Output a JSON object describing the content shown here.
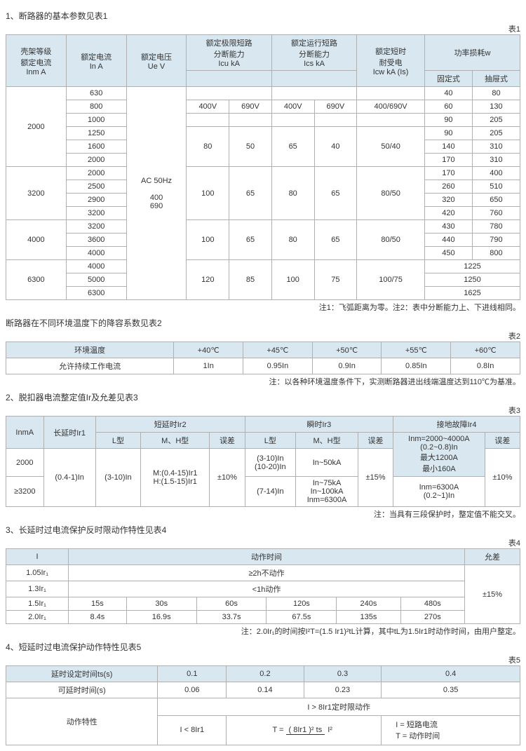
{
  "s1": {
    "title": "1、断路器的基本参数见表1",
    "lbl": "表1",
    "h": {
      "c0": "壳架等级\n额定电流\nInm A",
      "c1": "额定电流\nIn A",
      "c2": "额定电压\nUe V",
      "c3": "额定极限短路\n分断能力\nIcu kA",
      "c4": "额定运行短路\n分断能力\nIcs kA",
      "c5": "额定短时\n耐受电\nIcw kA (Is)",
      "c6": "功率损耗w",
      "c6a": "固定式",
      "c6b": "抽屉式"
    },
    "sub": {
      "a1": "400V",
      "a2": "690V",
      "b1": "400V",
      "b2": "690V",
      "c": "400/690V"
    },
    "uev": "AC 50Hz\n\n400\n690",
    "g": [
      {
        "f": "2000",
        "in": [
          "630",
          "800",
          "1000",
          "1250",
          "1600",
          "2000"
        ],
        "icu": [
          [
            "",
            ""
          ],
          [
            "400V",
            "690V"
          ],
          [
            "",
            ""
          ],
          [
            "",
            ""
          ],
          [
            "80",
            "50"
          ],
          [
            "",
            ""
          ]
        ],
        "ics": [
          [
            "",
            ""
          ],
          [
            "400V",
            "690V"
          ],
          [
            "",
            ""
          ],
          [
            "",
            ""
          ],
          [
            "65",
            "40"
          ],
          [
            "",
            ""
          ]
        ],
        "icw": [
          "",
          "400/690V",
          "",
          "",
          "50/40",
          ""
        ],
        "p": [
          [
            "40",
            "80"
          ],
          [
            "60",
            "130"
          ],
          [
            "90",
            "205"
          ],
          [
            "90",
            "205"
          ],
          [
            "140",
            "310"
          ],
          [
            "170",
            "310"
          ]
        ]
      },
      {
        "f": "3200",
        "in": [
          "2000",
          "2500",
          "2900",
          "3200"
        ],
        "icu": [
          "100",
          "65"
        ],
        "ics": [
          "80",
          "65"
        ],
        "icw": "80/50",
        "p": [
          [
            "170",
            "400"
          ],
          [
            "260",
            "510"
          ],
          [
            "320",
            "650"
          ],
          [
            "420",
            "760"
          ]
        ]
      },
      {
        "f": "4000",
        "in": [
          "3200",
          "3600",
          "4000"
        ],
        "icu": [
          "100",
          "65"
        ],
        "ics": [
          "80",
          "65"
        ],
        "icw": "80/50",
        "p": [
          [
            "430",
            "780"
          ],
          [
            "440",
            "790"
          ],
          [
            "450",
            "800"
          ]
        ]
      },
      {
        "f": "6300",
        "in": [
          "4000",
          "5000",
          "6300"
        ],
        "icu": [
          "120",
          "85"
        ],
        "ics": [
          "100",
          "75"
        ],
        "icw": "100/75",
        "p": [
          [
            "1225",
            ""
          ],
          [
            "1250",
            ""
          ],
          [
            "1625",
            ""
          ]
        ]
      }
    ],
    "note": "注1：飞弧距离为零。注2：表中分断能力上、下进线相同。"
  },
  "s2": {
    "title": "断路器在不同环境温度下的降容系数见表2",
    "lbl": "表2",
    "h": [
      "环境温度",
      "+40℃",
      "+45℃",
      "+50℃",
      "+55℃",
      "+60℃"
    ],
    "r": [
      "允许持续工作电流",
      "1In",
      "0.95In",
      "0.9In",
      "0.85In",
      "0.8In"
    ],
    "note": "注：以各种环境温度条件下，实测断路器进出线端温度达到110℃为基准。"
  },
  "s3": {
    "title": "2、脱扣器电流整定值Ir及允差见表3",
    "lbl": "表3",
    "h": {
      "c0": "InmA",
      "c1": "长延时Ir1",
      "c2": "短延时Ir2",
      "c2a": "L型",
      "c2b": "M、H型",
      "c2c": "误差",
      "c3": "瞬时Ir3",
      "c3a": "L型",
      "c3b": "M、H型",
      "c3c": "误差",
      "c4": "接地故障Ir4",
      "c4a": "Inm=2000~4000A\n(0.2~0.8)In\n最大1200A\n最小160A",
      "c4b": "误差"
    },
    "r": [
      {
        "a": "2000",
        "b": "(0.4-1)In",
        "c": "(3-10)In",
        "d": "M:(0.4-15)Ir1\nH:(1.5-15)Ir1",
        "e": "±10%",
        "f": "(3-10)In\n(10-20)In",
        "g": "In~50kA",
        "h": "±15%",
        "i": "±10%"
      },
      {
        "a": "≥3200",
        "f": "(7-14)In",
        "g": "In~75kA\nIn~100kA\nInm=6300A",
        "k": "Inm=6300A\n(0.2~1)In"
      }
    ],
    "note": "注：当具有三段保护时，整定值不能交叉。"
  },
  "s4": {
    "title": "3、长延时过电流保护反时限动作特性见表4",
    "lbl": "表4",
    "h": [
      "I",
      "动作时间",
      "允差"
    ],
    "r": [
      [
        "1.05Ir₁",
        "≥2h不动作"
      ],
      [
        "1.3Ir₁",
        "<1h动作"
      ],
      [
        "1.5Ir₁",
        "15s",
        "30s",
        "60s",
        "120s",
        "240s",
        "480s"
      ],
      [
        "2.0Ir₁",
        "8.4s",
        "16.9s",
        "33.7s",
        "67.5s",
        "135s",
        "270s"
      ]
    ],
    "tol": "±15%",
    "note": "注：2.0Ir₁的时间按I²T=(1.5 Ir1)²tL计算，其中tL为1.5Ir1时动作时间，由用户整定。"
  },
  "s5": {
    "title": "4、短延时过电流保护动作特性见表5",
    "lbl": "表5",
    "h": [
      "延时设定时间ts(s)",
      "0.1",
      "0.2",
      "0.3",
      "0.4"
    ],
    "r": [
      "可延时时间(s)",
      "0.06",
      "0.14",
      "0.23",
      "0.35"
    ],
    "ch": {
      "l": "动作特性",
      "t": "I > 8Ir1定时限动作",
      "bl": "I < 8Ir1",
      "note": "I = 短路电流\nT = 动作时间"
    }
  }
}
